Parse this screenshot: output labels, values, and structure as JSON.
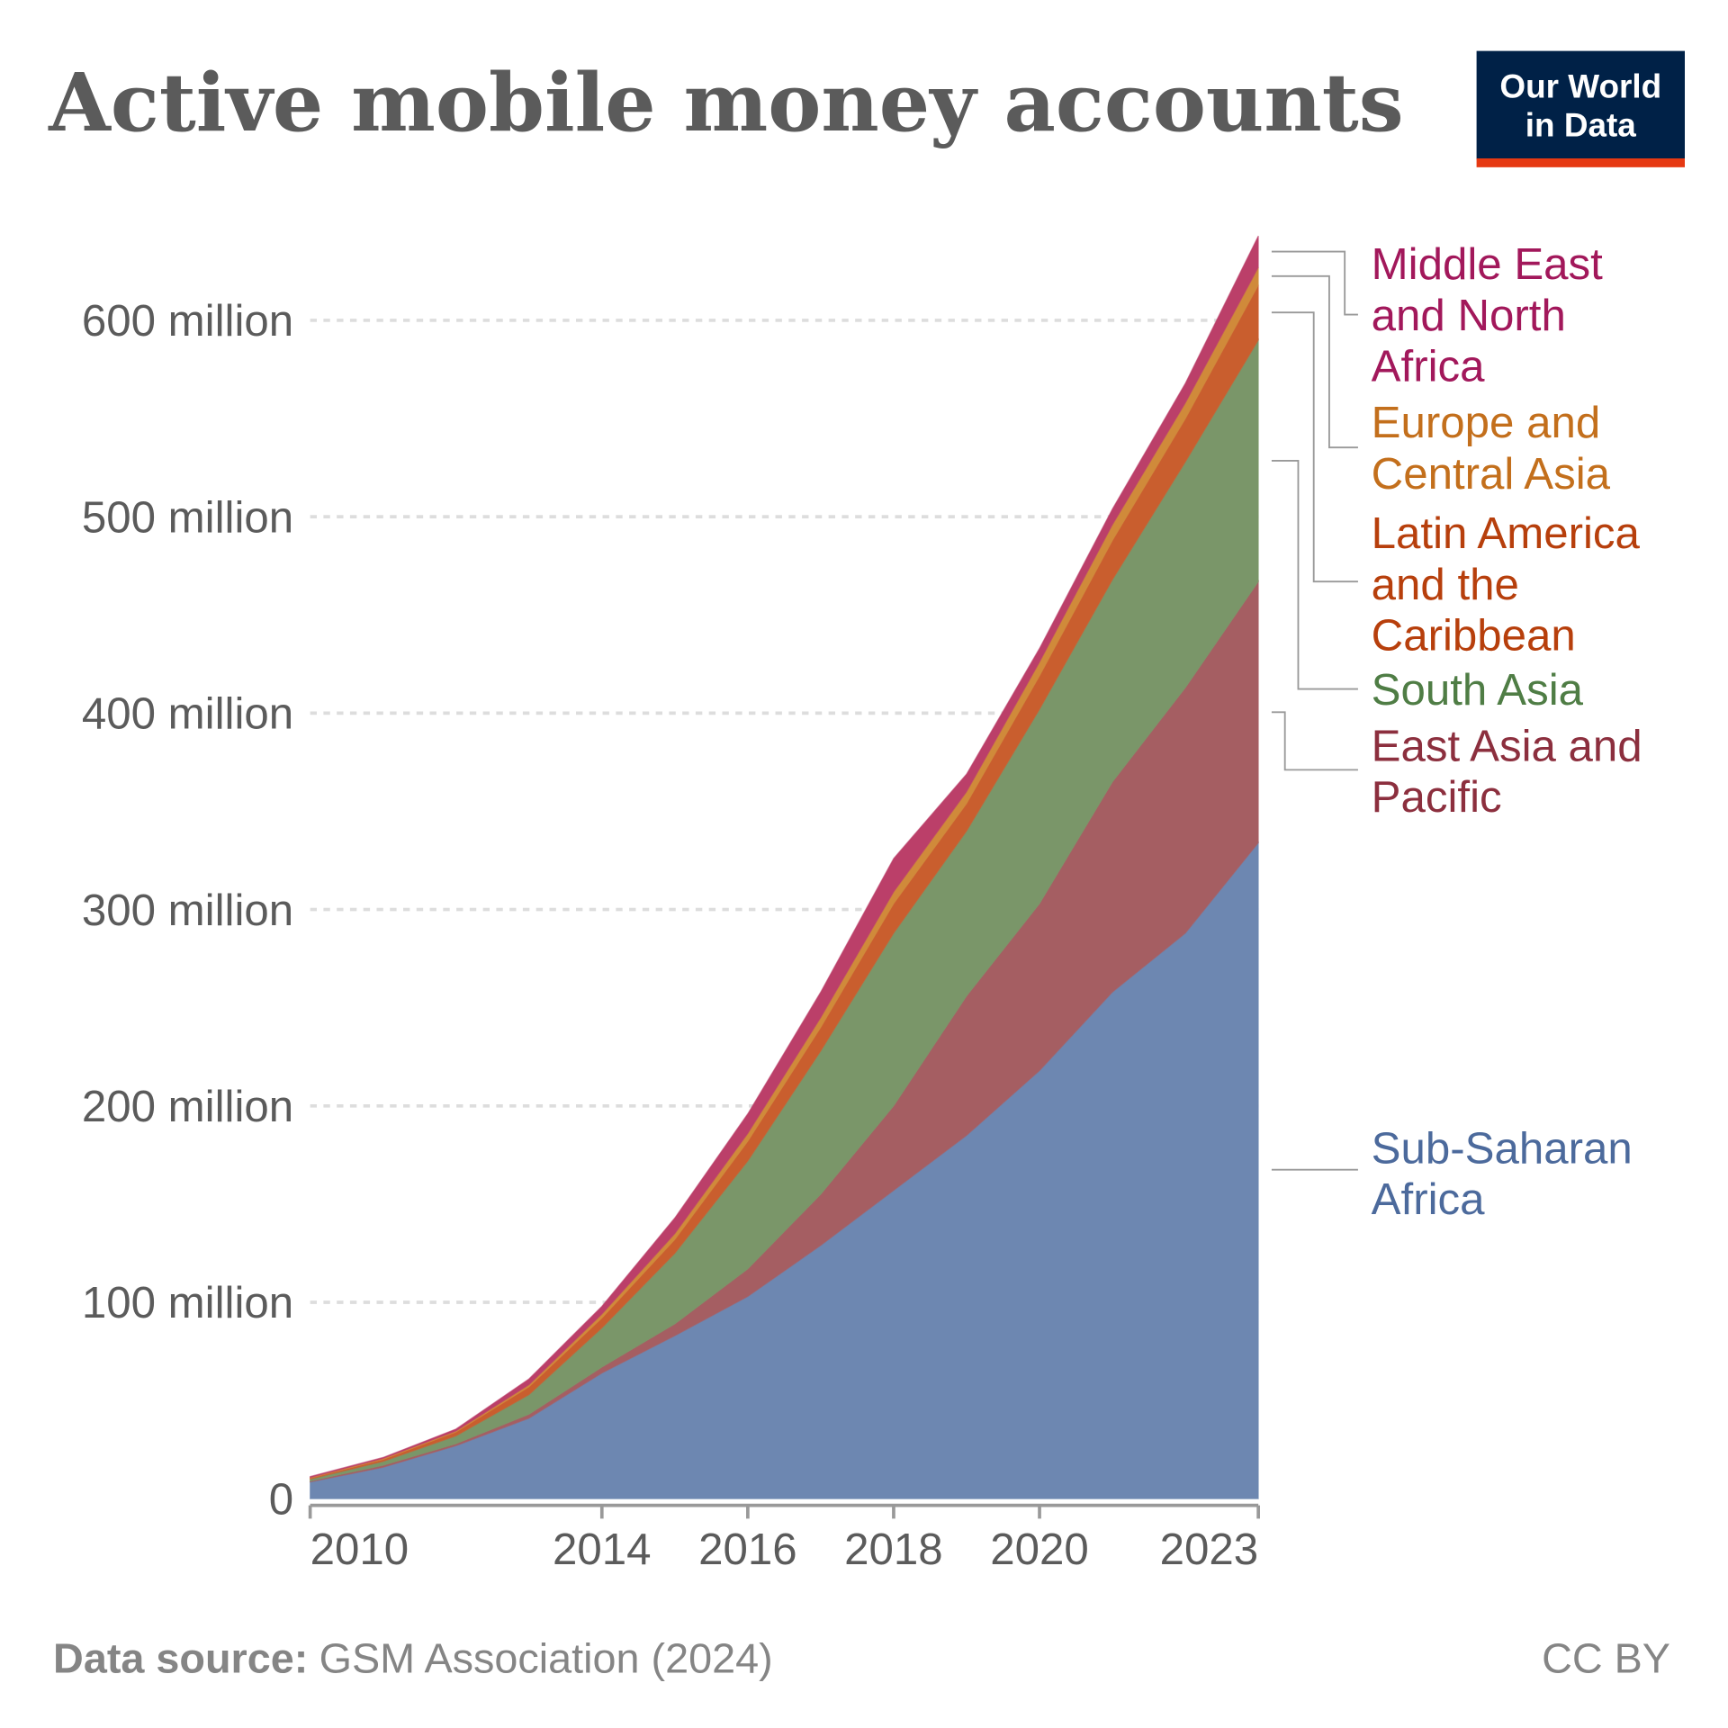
{
  "title": "Active mobile money accounts",
  "logo": {
    "line1": "Our World",
    "line2": "in Data",
    "bg": "#002147",
    "accent": "#E63912"
  },
  "footer": {
    "source_label": "Data source:",
    "source_text": "GSM Association (2024)",
    "license": "CC BY"
  },
  "chart_data": {
    "type": "area",
    "stacked": true,
    "title": "Active mobile money accounts",
    "x": [
      2010,
      2011,
      2012,
      2013,
      2014,
      2015,
      2016,
      2017,
      2018,
      2019,
      2020,
      2021,
      2022,
      2023
    ],
    "x_tick_labels": [
      "2010",
      "2014",
      "2016",
      "2018",
      "2020",
      "2023"
    ],
    "x_ticks": [
      2010,
      2014,
      2016,
      2018,
      2020,
      2023
    ],
    "y_tick_labels": [
      "0",
      "100 million",
      "200 million",
      "300 million",
      "400 million",
      "500 million",
      "600 million"
    ],
    "y_ticks": [
      0,
      100,
      200,
      300,
      400,
      500,
      600
    ],
    "ylim": [
      0,
      650
    ],
    "y_unit": "million",
    "grid": "horizontal dotted",
    "legend": "right, inline labels",
    "series": [
      {
        "name": "Sub-Saharan Africa",
        "label_lines": [
          "Sub-Saharan",
          "Africa"
        ],
        "color": "#6D87B1",
        "label_color": "#4C6A9C",
        "values": [
          8.5,
          16,
          27,
          41,
          64,
          83,
          103,
          129,
          157,
          185,
          218,
          258,
          288,
          334
        ]
      },
      {
        "name": "East Asia and Pacific",
        "label_lines": [
          "East Asia and",
          "Pacific"
        ],
        "color": "#A55E62",
        "label_color": "#8C2F3E",
        "values": [
          0.5,
          1,
          1,
          2,
          3,
          6,
          14,
          26,
          43,
          71,
          85,
          107,
          125,
          133
        ]
      },
      {
        "name": "South Asia",
        "label_lines": [
          "South Asia"
        ],
        "color": "#7A9669",
        "label_color": "#4F7D45",
        "values": [
          1,
          2,
          4,
          10,
          20,
          36,
          55,
          73,
          88,
          84,
          99,
          103,
          115,
          123
        ]
      },
      {
        "name": "Latin America and the Caribbean",
        "label_lines": [
          "Latin America",
          "and the",
          "Caribbean"
        ],
        "color": "#C95E2E",
        "label_color": "#B73F0C",
        "values": [
          0.5,
          1,
          2,
          4,
          5,
          7,
          10,
          12,
          15,
          14,
          17,
          20,
          22,
          28
        ]
      },
      {
        "name": "Europe and Central Asia",
        "label_lines": [
          "Europe and",
          "Central Asia"
        ],
        "color": "#D08A3A",
        "label_color": "#C36F1C",
        "values": [
          0.3,
          0.5,
          0.5,
          1,
          2,
          3,
          4,
          5,
          6,
          6,
          7,
          8,
          8,
          9
        ]
      },
      {
        "name": "Middle East and North Africa",
        "label_lines": [
          "Middle East",
          "and North",
          "Africa"
        ],
        "color": "#BB3F69",
        "label_color": "#A2185B",
        "values": [
          0.5,
          0.5,
          1,
          3,
          4,
          8,
          10,
          13,
          17,
          9,
          7,
          8,
          10,
          16
        ]
      }
    ]
  }
}
